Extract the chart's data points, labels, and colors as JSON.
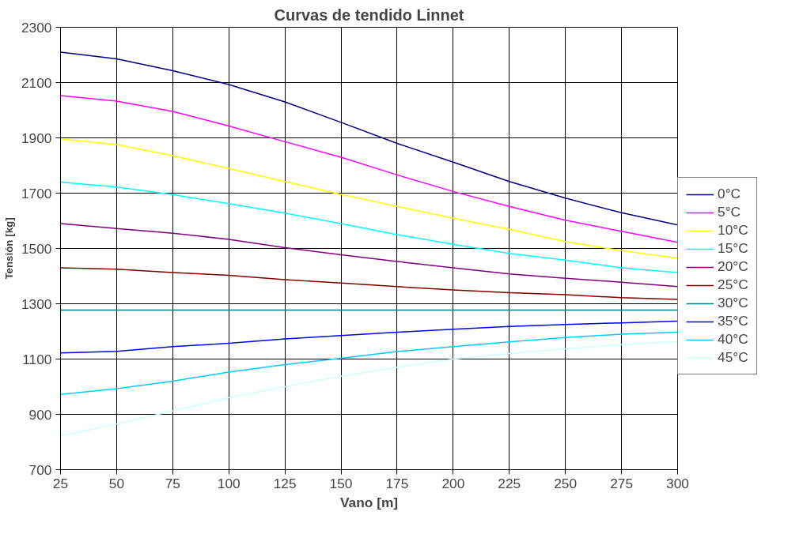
{
  "chart_data": {
    "type": "line",
    "title": "Curvas de tendido Linnet",
    "xlabel": "Vano [m]",
    "ylabel": "Tensión [kg]",
    "x": [
      25,
      50,
      75,
      100,
      125,
      150,
      175,
      200,
      225,
      250,
      275,
      300
    ],
    "xlim": [
      25,
      300
    ],
    "xticks": [
      25,
      50,
      75,
      100,
      125,
      150,
      175,
      200,
      225,
      250,
      275,
      300
    ],
    "ylim": [
      700,
      2300
    ],
    "yticks": [
      700,
      900,
      1100,
      1300,
      1500,
      1700,
      1900,
      2100,
      2300
    ],
    "grid": true,
    "legend": "right",
    "marker": "none",
    "line_style": "solid",
    "series": [
      {
        "name": "0°C",
        "color": "#000080",
        "values": [
          2210,
          2186,
          2143,
          2093,
          2030,
          1956,
          1880,
          1812,
          1742,
          1682,
          1629,
          1585
        ]
      },
      {
        "name": "5°C",
        "color": "#ff00ff",
        "values": [
          2053,
          2033,
          1996,
          1943,
          1886,
          1830,
          1766,
          1706,
          1652,
          1602,
          1562,
          1522
        ]
      },
      {
        "name": "10°C",
        "color": "#ffff00",
        "values": [
          1896,
          1876,
          1836,
          1789,
          1742,
          1696,
          1652,
          1609,
          1569,
          1525,
          1492,
          1465
        ]
      },
      {
        "name": "15°C",
        "color": "#00ffff",
        "values": [
          1740,
          1722,
          1695,
          1662,
          1628,
          1590,
          1550,
          1515,
          1482,
          1458,
          1430,
          1413
        ]
      },
      {
        "name": "20°C",
        "color": "#800080",
        "values": [
          1590,
          1572,
          1555,
          1533,
          1503,
          1477,
          1453,
          1430,
          1408,
          1392,
          1378,
          1362
        ]
      },
      {
        "name": "25°C",
        "color": "#800000",
        "values": [
          1430,
          1425,
          1413,
          1403,
          1387,
          1375,
          1362,
          1350,
          1340,
          1333,
          1322,
          1316
        ]
      },
      {
        "name": "30°C",
        "color": "#008080",
        "values": [
          1277,
          1277,
          1277,
          1277,
          1277,
          1277,
          1277,
          1277,
          1277,
          1277,
          1277,
          1277
        ]
      },
      {
        "name": "35°C",
        "color": "#0000ff",
        "values": [
          1122,
          1128,
          1145,
          1157,
          1173,
          1185,
          1197,
          1208,
          1218,
          1225,
          1231,
          1237
        ]
      },
      {
        "name": "40°C",
        "color": "#00ccff",
        "values": [
          972,
          993,
          1020,
          1053,
          1080,
          1103,
          1127,
          1145,
          1162,
          1178,
          1190,
          1197
        ]
      },
      {
        "name": "45°C",
        "color": "#ccffff",
        "values": [
          822,
          866,
          912,
          960,
          1000,
          1038,
          1070,
          1100,
          1120,
          1137,
          1152,
          1163
        ]
      }
    ]
  }
}
